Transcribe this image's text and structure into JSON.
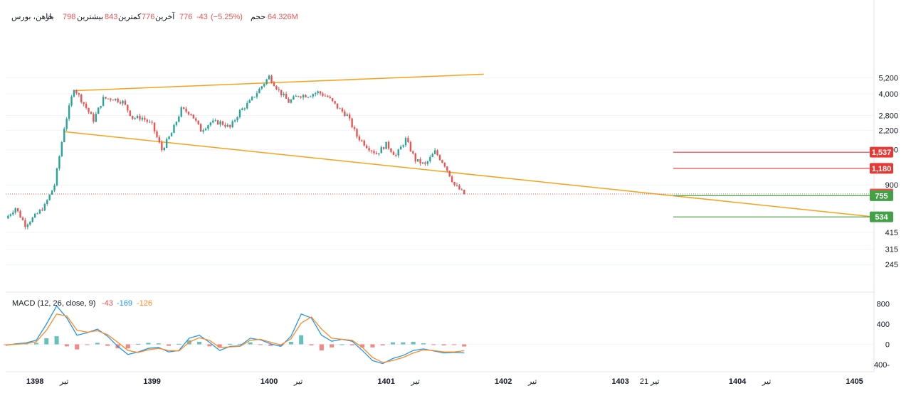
{
  "header": {
    "name": "خاهن، بورس",
    "open_label": "باز",
    "open_value": "798",
    "high_label": "بیشترین",
    "high_value": "843",
    "low_label": "کمترین",
    "low_value": "776",
    "close_label": "آخرین",
    "close_value": "776",
    "change": "-43",
    "change_pct": "(−5.25%)",
    "volume_label": "حجم",
    "volume_value": "64.326M"
  },
  "macd_header": {
    "label": "MACD (12, 26, close, 9)",
    "hist": "-43",
    "macd": "-169",
    "signal": "-126"
  },
  "colors": {
    "up": "#26a69a",
    "down": "#ef5350",
    "trend": "#f7a21b",
    "macd": "#2196f3",
    "signal": "#ff8a1f",
    "resistance": "#e53935",
    "support": "#43a047"
  },
  "chart_data": [
    {
      "type": "candlestick",
      "title": "",
      "y_scale": "log",
      "y_ticks": [
        "5,200",
        "4,000",
        "2,800",
        "2,200",
        "1,600",
        "900",
        "415",
        "315",
        "245"
      ],
      "x_ticks": [
        "1398",
        "تیر",
        "1399",
        "1400",
        "تیر",
        "1401",
        "تیر",
        "1402",
        "تیر",
        "1403",
        "21 تیر",
        "1404",
        "تیر",
        "1405"
      ],
      "x_range": [
        "1397-10",
        "1405-03"
      ],
      "price_labels": [
        {
          "value": "1,537",
          "kind": "resistance"
        },
        {
          "value": "1,180",
          "kind": "resistance"
        },
        {
          "value": "776",
          "kind": "last"
        },
        {
          "value": "755",
          "kind": "support"
        },
        {
          "value": "534",
          "kind": "support"
        }
      ],
      "price_path": [
        {
          "date": "1397-10",
          "price": 520
        },
        {
          "date": "1397-11",
          "price": 620
        },
        {
          "date": "1397-12",
          "price": 470
        },
        {
          "date": "1398-01",
          "price": 540
        },
        {
          "date": "1398-02",
          "price": 640
        },
        {
          "date": "1398-03",
          "price": 900
        },
        {
          "date": "1398-04",
          "price": 2300
        },
        {
          "date": "1398-05",
          "price": 4400
        },
        {
          "date": "1398-06",
          "price": 3400
        },
        {
          "date": "1398-07",
          "price": 2600
        },
        {
          "date": "1398-08",
          "price": 3700
        },
        {
          "date": "1398-09",
          "price": 3700
        },
        {
          "date": "1398-10",
          "price": 3500
        },
        {
          "date": "1398-11",
          "price": 2700
        },
        {
          "date": "1398-12",
          "price": 2700
        },
        {
          "date": "1399-01",
          "price": 2400
        },
        {
          "date": "1399-02",
          "price": 1600
        },
        {
          "date": "1399-03",
          "price": 2100
        },
        {
          "date": "1399-04",
          "price": 3100
        },
        {
          "date": "1399-05",
          "price": 2900
        },
        {
          "date": "1399-06",
          "price": 2200
        },
        {
          "date": "1399-07",
          "price": 2500
        },
        {
          "date": "1399-08",
          "price": 2500
        },
        {
          "date": "1399-09",
          "price": 2300
        },
        {
          "date": "1399-10",
          "price": 3000
        },
        {
          "date": "1399-11",
          "price": 3500
        },
        {
          "date": "1399-12",
          "price": 4300
        },
        {
          "date": "1400-01",
          "price": 5300
        },
        {
          "date": "1400-02",
          "price": 4200
        },
        {
          "date": "1400-03",
          "price": 3500
        },
        {
          "date": "1400-04",
          "price": 3900
        },
        {
          "date": "1400-05",
          "price": 3900
        },
        {
          "date": "1400-06",
          "price": 4100
        },
        {
          "date": "1400-07",
          "price": 3800
        },
        {
          "date": "1400-08",
          "price": 3200
        },
        {
          "date": "1400-09",
          "price": 2800
        },
        {
          "date": "1400-10",
          "price": 2000
        },
        {
          "date": "1400-11",
          "price": 1700
        },
        {
          "date": "1400-12",
          "price": 1500
        },
        {
          "date": "1401-01",
          "price": 1750
        },
        {
          "date": "1401-02",
          "price": 1450
        },
        {
          "date": "1401-03",
          "price": 1900
        },
        {
          "date": "1401-04",
          "price": 1350
        },
        {
          "date": "1401-05",
          "price": 1250
        },
        {
          "date": "1401-06",
          "price": 1550
        },
        {
          "date": "1401-07",
          "price": 1250
        },
        {
          "date": "1401-08",
          "price": 900
        },
        {
          "date": "1401-09",
          "price": 776
        }
      ],
      "trendlines": [
        {
          "from": {
            "date": "1398-05",
            "price": 4200
          },
          "to": {
            "date": "1401-11",
            "price": 5500
          }
        },
        {
          "from": {
            "date": "1398-04",
            "price": 2150
          },
          "to": {
            "date": "1405-03",
            "price": 534
          }
        }
      ]
    },
    {
      "type": "line",
      "title": "MACD (12, 26, close, 9)",
      "y_ticks": [
        "800",
        "400",
        "0",
        "-400"
      ],
      "series": [
        {
          "name": "MACD",
          "values": [
            -20,
            10,
            30,
            80,
            400,
            760,
            520,
            180,
            230,
            300,
            160,
            -40,
            -200,
            -150,
            -80,
            -60,
            -150,
            -120,
            120,
            180,
            40,
            -120,
            -40,
            -30,
            120,
            90,
            10,
            -40,
            160,
            600,
            520,
            180,
            60,
            100,
            60,
            -120,
            -320,
            -380,
            -280,
            -220,
            -120,
            -90,
            -130,
            -170,
            -160,
            -169
          ]
        },
        {
          "name": "Signal",
          "values": [
            -10,
            0,
            15,
            50,
            280,
            600,
            560,
            280,
            240,
            270,
            190,
            40,
            -120,
            -160,
            -110,
            -80,
            -120,
            -130,
            40,
            130,
            80,
            -60,
            -50,
            -40,
            80,
            100,
            40,
            -10,
            110,
            420,
            540,
            300,
            120,
            100,
            80,
            -60,
            -260,
            -360,
            -320,
            -260,
            -170,
            -110,
            -120,
            -150,
            -150,
            -126
          ]
        }
      ],
      "histogram": [
        -10,
        10,
        15,
        30,
        120,
        160,
        -40,
        -100,
        -10,
        30,
        -30,
        -80,
        -80,
        10,
        30,
        20,
        -30,
        10,
        80,
        50,
        -40,
        -60,
        10,
        10,
        40,
        -10,
        -30,
        -30,
        50,
        180,
        -20,
        -120,
        -60,
        0,
        -20,
        -60,
        -60,
        -20,
        40,
        40,
        50,
        20,
        -10,
        -20,
        -10,
        -43
      ]
    }
  ]
}
